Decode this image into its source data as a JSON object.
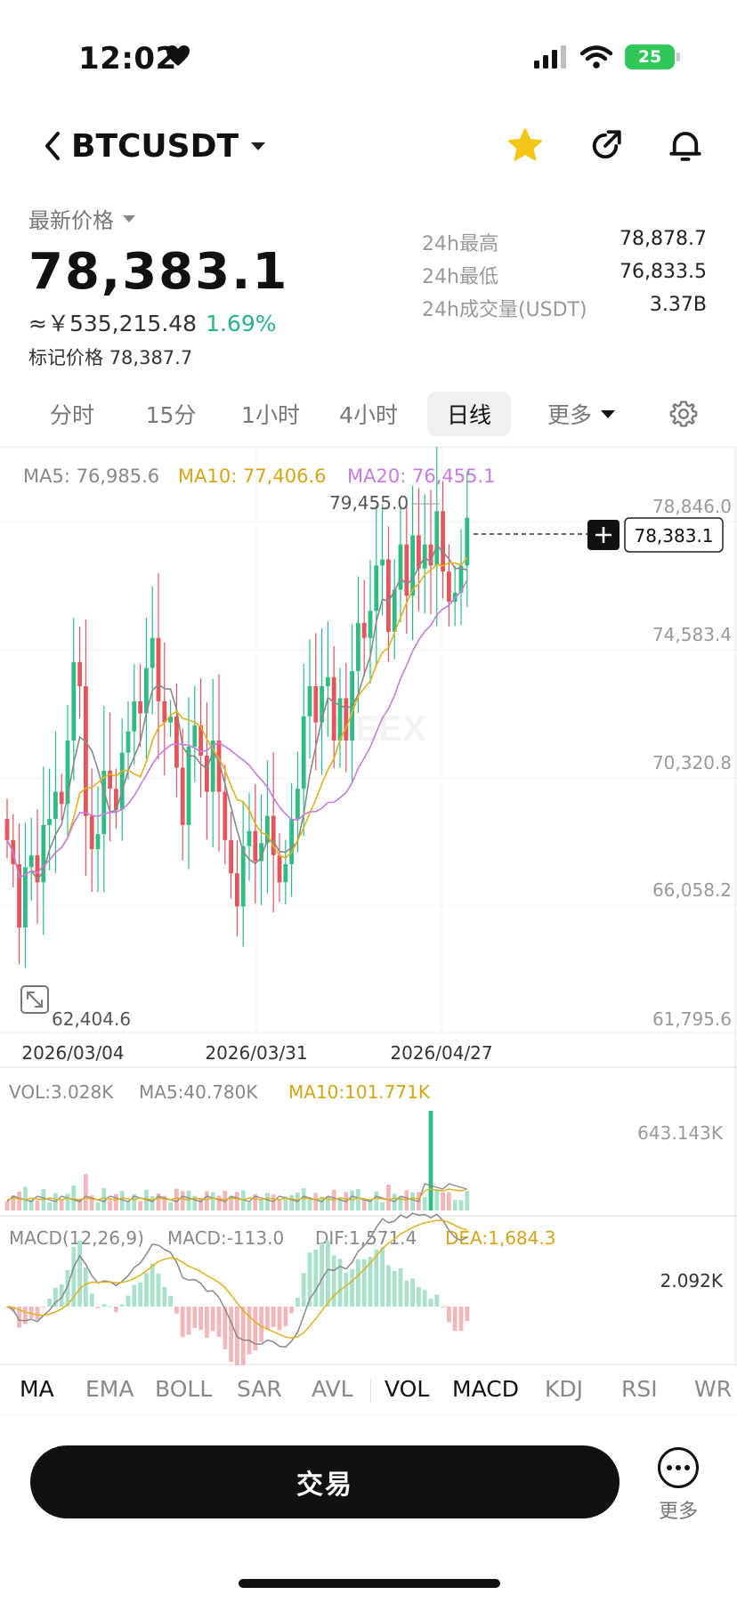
{
  "status": {
    "time": "12:02",
    "battery": "25"
  },
  "header": {
    "symbol": "BTCUSDT"
  },
  "price": {
    "latest_label": "最新价格",
    "last": "78,383.1",
    "cny": "≈￥535,215.48",
    "change": "1.69%",
    "mark_label": "标记价格",
    "mark": "78,387.7"
  },
  "stats": [
    {
      "k": "24h最高",
      "v": "78,878.7"
    },
    {
      "k": "24h最低",
      "v": "76,833.5"
    },
    {
      "k": "24h成交量(USDT)",
      "v": "3.37B"
    }
  ],
  "timeframes": [
    "分时",
    "15分",
    "1小时",
    "4小时",
    "日线",
    "更多"
  ],
  "active_timeframe": "日线",
  "ma_legend": {
    "ma5": "MA5: 76,985.6",
    "ma10": "MA10: 77,406.6",
    "ma20": "MA20: 76,455.1"
  },
  "vol_legend": {
    "vol": "VOL:3.028K",
    "ma5": "MA5:40.780K",
    "ma10": "MA10:101.771K"
  },
  "macd_legend": {
    "params": "MACD(12,26,9)",
    "macd": "MACD:-113.0",
    "dif": "DIF:1,571.4",
    "dea": "DEA:1,684.3"
  },
  "colors": {
    "up": "#2ebd85",
    "down": "#e6545c",
    "ma5": "#888888",
    "ma10": "#e0b11d",
    "ma20": "#c77be0",
    "dark": "#111111"
  },
  "chart_data": {
    "type": "candlestick",
    "y_ticks": [
      "78,846.0",
      "74,583.4",
      "70,320.8",
      "66,058.2",
      "61,795.6"
    ],
    "y_tick_values": [
      78846.0,
      74583.4,
      70320.8,
      66058.2,
      61795.6
    ],
    "x_ticks": [
      "2026/03/04",
      "2026/03/31",
      "2026/04/27"
    ],
    "high_label": "79,455.0",
    "low_label": "62,404.6",
    "current_price_label": "78,383.1",
    "current_price": 78383.1,
    "vol_axis_label": "643.143K",
    "macd_axis_label": "2.092K",
    "close": [
      67700,
      66900,
      64800,
      66800,
      67200,
      66300,
      68200,
      68400,
      69300,
      68900,
      71000,
      73600,
      72800,
      68500,
      67400,
      67900,
      70000,
      69400,
      68700,
      70600,
      71300,
      72300,
      71900,
      73400,
      74400,
      72300,
      71600,
      71800,
      70100,
      68200,
      70800,
      71500,
      70500,
      69300,
      71000,
      69300,
      67700,
      66600,
      65500,
      67500,
      68000,
      67000,
      67600,
      68500,
      67200,
      66300,
      66900,
      68400,
      69400,
      71800,
      72800,
      71600,
      72800,
      73100,
      71000,
      72400,
      71000,
      73300,
      74900,
      74400,
      75300,
      76800,
      77000,
      74600,
      76000,
      77500,
      75800,
      77800,
      76700,
      77500,
      76800,
      78600,
      76600,
      75600,
      75900,
      76800,
      78383
    ]
  },
  "indicators": [
    "MA",
    "EMA",
    "BOLL",
    "SAR",
    "AVL",
    "VOL",
    "MACD",
    "KDJ",
    "RSI",
    "WR"
  ],
  "actions": {
    "trade": "交易",
    "more": "更多"
  }
}
